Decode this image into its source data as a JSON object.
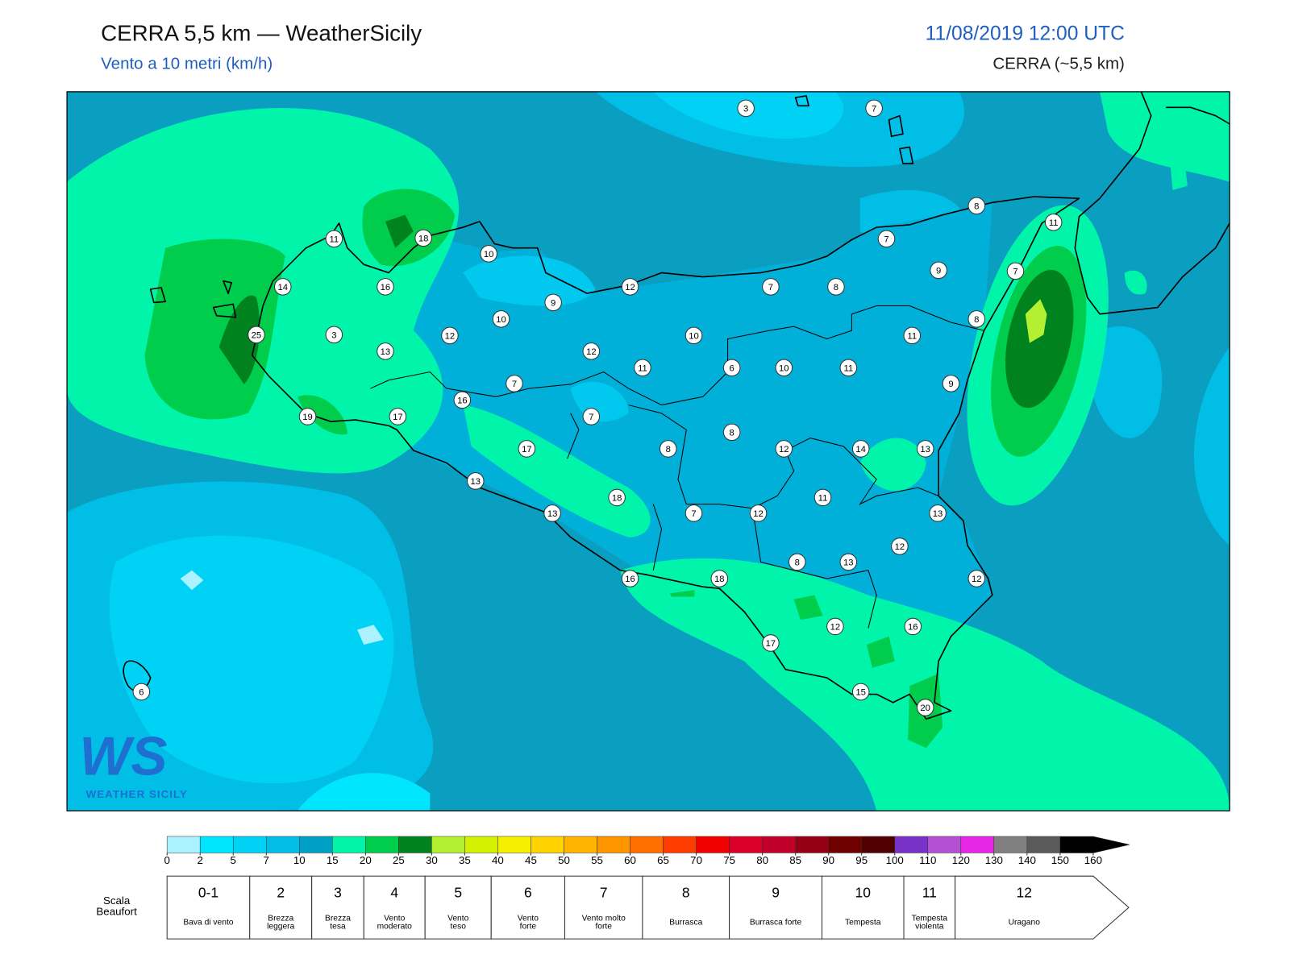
{
  "header": {
    "title": "CERRA 5,5 km — WeatherSicily",
    "subtitle": "Vento a 10 metri (km/h)",
    "datetime": "11/08/2019 12:00 UTC",
    "model": "CERRA (~5,5 km)"
  },
  "stations": [
    3,
    7,
    8,
    11,
    7,
    9,
    7,
    11,
    18,
    10,
    14,
    16,
    12,
    7,
    8,
    9,
    10,
    25,
    3,
    12,
    10,
    11,
    8,
    13,
    12,
    11,
    6,
    10,
    11,
    9,
    7,
    16,
    19,
    17,
    7,
    8,
    17,
    8,
    12,
    14,
    13,
    13,
    18,
    11,
    13,
    7,
    12,
    13,
    12,
    8,
    13,
    12,
    16,
    18,
    12,
    16,
    17,
    15,
    20,
    6
  ],
  "logo": {
    "mark": "WS",
    "text": "WEATHER SICILY"
  },
  "colorbar": {
    "ticks": [
      0,
      2,
      5,
      7,
      10,
      15,
      20,
      25,
      30,
      35,
      40,
      45,
      50,
      55,
      60,
      65,
      70,
      75,
      80,
      85,
      90,
      95,
      100,
      110,
      120,
      130,
      140,
      150,
      160
    ],
    "colors": [
      "#aaf2ff",
      "#00e6ff",
      "#00d2f5",
      "#00bee6",
      "#00a0c4",
      "#00f5aa",
      "#00cd4b",
      "#00821e",
      "#b4f032",
      "#d2f000",
      "#f5f000",
      "#ffd200",
      "#ffb400",
      "#ff9600",
      "#ff6e00",
      "#ff3c00",
      "#f00000",
      "#dc0028",
      "#c00028",
      "#960014",
      "#6e0000",
      "#500000",
      "#7832c8",
      "#b450d2",
      "#e628e6",
      "#808080",
      "#5a5a5a",
      "#000000",
      "#8c4a28",
      "#c88850"
    ]
  },
  "beaufort": {
    "title": "Scala Beaufort",
    "levels": [
      {
        "force": "0-1",
        "label": "Bava di vento"
      },
      {
        "force": 2,
        "label": "Brezza leggera"
      },
      {
        "force": 3,
        "label": "Brezza tesa"
      },
      {
        "force": 4,
        "label": "Vento moderato"
      },
      {
        "force": 5,
        "label": "Vento teso"
      },
      {
        "force": 6,
        "label": "Vento forte"
      },
      {
        "force": 7,
        "label": "Vento molto forte"
      },
      {
        "force": 8,
        "label": "Burrasca"
      },
      {
        "force": 9,
        "label": "Burrasca forte"
      },
      {
        "force": 10,
        "label": "Tempesta"
      },
      {
        "force": 11,
        "label": "Tempesta violenta"
      },
      {
        "force": 12,
        "label": "Uragano"
      }
    ]
  }
}
